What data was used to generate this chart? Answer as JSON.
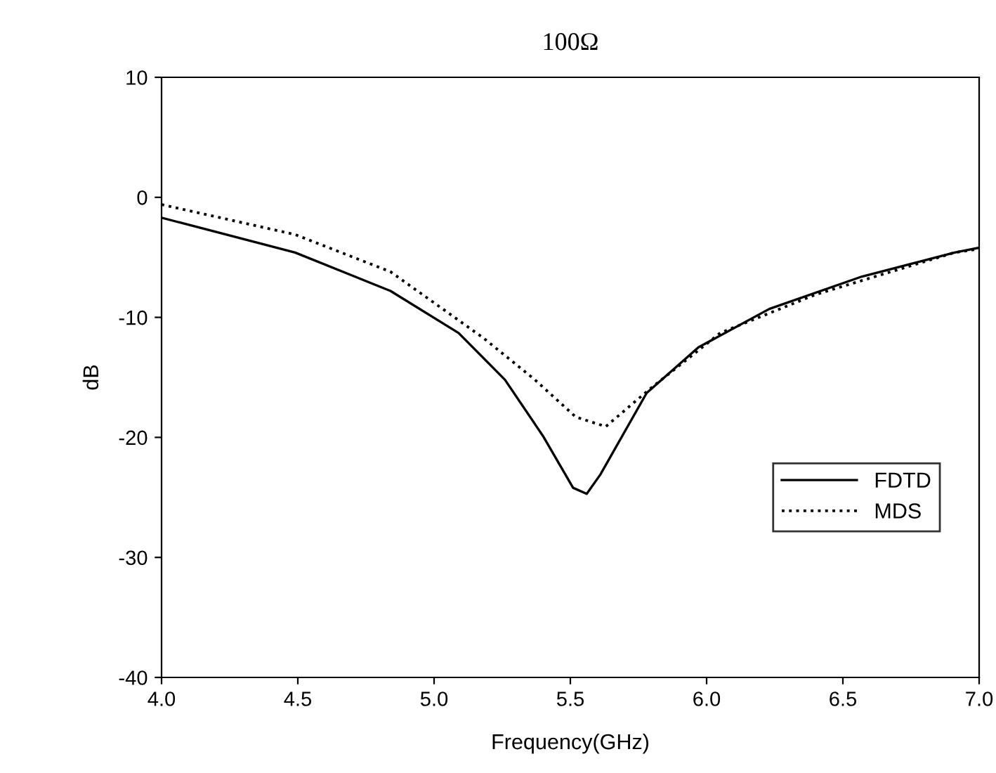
{
  "chart_data": {
    "type": "line",
    "title": "100Ω",
    "xlabel": "Frequency(GHz)",
    "ylabel": "dB",
    "xlim": [
      4.0,
      7.0
    ],
    "xticks": [
      {
        "value": 4.0,
        "label": "4.0"
      },
      {
        "value": 4.5,
        "label": "4.5"
      },
      {
        "value": 5.0,
        "label": "5.0"
      },
      {
        "value": 5.5,
        "label": "5.5"
      },
      {
        "value": 6.0,
        "label": "6.0"
      },
      {
        "value": 6.5,
        "label": "6.5"
      },
      {
        "value": 7.0,
        "label": "7.0"
      }
    ],
    "ylim": [
      -40,
      10
    ],
    "yticks": [
      -40,
      -30,
      -20,
      -10,
      0,
      10
    ],
    "grid": false,
    "legend": "bottom right",
    "marker": "none",
    "series": [
      {
        "name": "FDTD",
        "color": "#000000",
        "line_style": "solid",
        "x": [
          4.0,
          4.49,
          4.84,
          5.09,
          5.26,
          5.4,
          5.51,
          5.56,
          5.61,
          5.78,
          5.97,
          6.23,
          6.57,
          6.91,
          7.0
        ],
        "values": [
          -1.7,
          -4.6,
          -7.8,
          -11.3,
          -15.2,
          -19.9,
          -24.2,
          -24.7,
          -23.1,
          -16.3,
          -12.5,
          -9.3,
          -6.6,
          -4.6,
          -4.2
        ]
      },
      {
        "name": "MDS",
        "color": "#000000",
        "line_style": "dotted",
        "x": [
          4.0,
          4.49,
          4.84,
          5.18,
          5.37,
          5.52,
          5.63,
          5.79,
          6.05,
          6.4,
          6.91,
          7.0
        ],
        "values": [
          -0.6,
          -3.1,
          -6.2,
          -11.7,
          -15.2,
          -18.3,
          -19.1,
          -16.0,
          -11.3,
          -8.1,
          -4.6,
          -4.3
        ]
      }
    ]
  }
}
